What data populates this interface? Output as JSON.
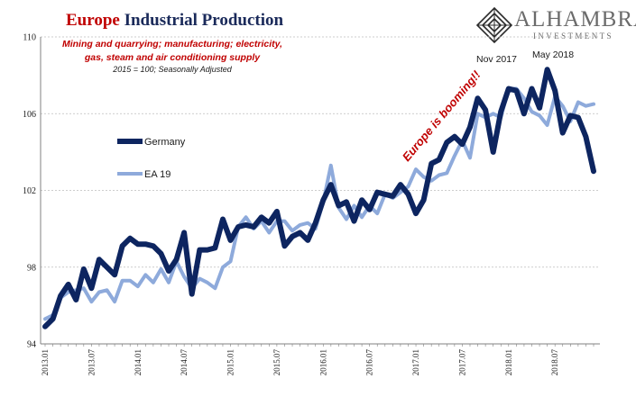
{
  "title": {
    "accent": "Europe",
    "rest": "Industrial Production"
  },
  "subtitle_lines": [
    "Mining and quarrying; manufacturing; electricity,",
    "gas, steam and air conditioning supply"
  ],
  "subtitle_note": "2015 = 100; Seasonally Adjusted",
  "logo": {
    "name": "ALHAMBRA",
    "sub": "INVESTMENTS",
    "icon": "alhambra-diamond-icon"
  },
  "annotations": {
    "booming": "Europe is booming!!",
    "nov": "Nov 2017",
    "may": "May 2018"
  },
  "colors": {
    "germany": "#0d2560",
    "ea19": "#8eaadb",
    "accent": "#c00000",
    "grid": "#bdbdbd",
    "axis": "#808080"
  },
  "chart_data": {
    "type": "line",
    "ylim": [
      94,
      110
    ],
    "yticks": [
      94,
      98,
      102,
      106,
      110
    ],
    "x": [
      "2013.01",
      "2013.02",
      "2013.03",
      "2013.04",
      "2013.05",
      "2013.06",
      "2013.07",
      "2013.08",
      "2013.09",
      "2013.10",
      "2013.11",
      "2013.12",
      "2014.01",
      "2014.02",
      "2014.03",
      "2014.04",
      "2014.05",
      "2014.06",
      "2014.07",
      "2014.08",
      "2014.09",
      "2014.10",
      "2014.11",
      "2014.12",
      "2015.01",
      "2015.02",
      "2015.03",
      "2015.04",
      "2015.05",
      "2015.06",
      "2015.07",
      "2015.08",
      "2015.09",
      "2015.10",
      "2015.11",
      "2015.12",
      "2016.01",
      "2016.02",
      "2016.03",
      "2016.04",
      "2016.05",
      "2016.06",
      "2016.07",
      "2016.08",
      "2016.09",
      "2016.10",
      "2016.11",
      "2016.12",
      "2017.01",
      "2017.02",
      "2017.03",
      "2017.04",
      "2017.05",
      "2017.06",
      "2017.07",
      "2017.08",
      "2017.09",
      "2017.10",
      "2017.11",
      "2017.12",
      "2018.01",
      "2018.02",
      "2018.03",
      "2018.04",
      "2018.05",
      "2018.06",
      "2018.07",
      "2018.08",
      "2018.09",
      "2018.10",
      "2018.11",
      "2018.12"
    ],
    "x_tick_labels": [
      "2013.01",
      "2013.07",
      "2014.01",
      "2014.07",
      "2015.01",
      "2015.07",
      "2016.01",
      "2016.07",
      "2017.01",
      "2017.07",
      "2018.01",
      "2018.07"
    ],
    "series": [
      {
        "name": "Germany",
        "values": [
          94.9,
          95.3,
          96.5,
          97.1,
          96.3,
          97.9,
          96.9,
          98.4,
          98.0,
          97.6,
          99.1,
          99.5,
          99.2,
          99.2,
          99.1,
          98.7,
          97.8,
          98.4,
          99.8,
          96.6,
          98.9,
          98.9,
          99.0,
          100.5,
          99.4,
          100.1,
          100.2,
          100.1,
          100.6,
          100.3,
          100.9,
          99.1,
          99.6,
          99.8,
          99.4,
          100.3,
          101.5,
          102.3,
          101.2,
          101.4,
          100.4,
          101.5,
          101.0,
          101.9,
          101.8,
          101.7,
          102.3,
          101.8,
          100.8,
          101.5,
          103.4,
          103.6,
          104.5,
          104.8,
          104.4,
          105.3,
          106.8,
          106.2,
          104.0,
          106.1,
          107.3,
          107.2,
          106.0,
          107.3,
          106.3,
          108.3,
          107.2,
          105.0,
          105.9,
          105.8,
          104.8,
          103.0
        ]
      },
      {
        "name": "EA 19",
        "values": [
          95.3,
          95.5,
          96.4,
          96.7,
          96.8,
          96.9,
          96.2,
          96.7,
          96.8,
          96.2,
          97.3,
          97.3,
          97.0,
          97.6,
          97.2,
          97.9,
          97.2,
          98.3,
          97.5,
          96.9,
          97.4,
          97.2,
          96.9,
          98.0,
          98.3,
          100.1,
          100.6,
          100.0,
          100.4,
          99.8,
          100.4,
          100.4,
          99.9,
          100.2,
          100.3,
          100.0,
          101.4,
          103.3,
          101.1,
          100.5,
          101.2,
          100.6,
          101.2,
          100.8,
          101.8,
          101.6,
          101.9,
          102.2,
          103.1,
          102.7,
          102.5,
          102.8,
          102.9,
          103.8,
          104.6,
          103.7,
          106.0,
          105.8,
          106.0,
          105.8,
          107.3,
          107.3,
          106.8,
          106.1,
          105.9,
          105.4,
          106.9,
          106.4,
          105.6,
          106.6,
          106.4,
          106.5
        ]
      }
    ]
  }
}
